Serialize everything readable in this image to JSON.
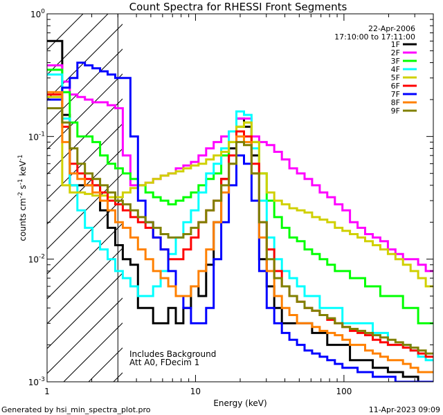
{
  "chart_data": {
    "type": "line",
    "title": "Count Spectra for RHESSI Front Segments",
    "xlabel": "Energy (keV)",
    "ylabel_parts": [
      "counts cm",
      "-2",
      " s",
      "-1",
      " keV",
      "-1"
    ],
    "xscale": "log",
    "yscale": "log",
    "xlim": [
      1,
      400
    ],
    "ylim": [
      0.001,
      1
    ],
    "x_major_ticks": [
      {
        "value": 1,
        "label": "1"
      },
      {
        "value": 10,
        "label": "10"
      },
      {
        "value": 100,
        "label": "100"
      }
    ],
    "y_major_ticks": [
      {
        "value": 1,
        "base": "10",
        "exp": "0"
      },
      {
        "value": 0.1,
        "base": "10",
        "exp": "-1"
      },
      {
        "value": 0.01,
        "base": "10",
        "exp": "-2"
      },
      {
        "value": 0.001,
        "base": "10",
        "exp": "-3"
      }
    ],
    "shaded_region_below_keV": 3,
    "header": {
      "date": "22-Apr-2006",
      "time_range": "17:10:00 to 17:11:00"
    },
    "annotations": [
      "Includes Background",
      "Att A0, FDecim 1"
    ],
    "footer_left": "Generated by hsi_min_spectra_plot.pro",
    "footer_right": "11-Apr-2023 09:09",
    "series": [
      {
        "name": "1F",
        "color": "#000000",
        "values": [
          0.6,
          0.6,
          0.15,
          0.04,
          0.04,
          0.04,
          0.04,
          0.025,
          0.018,
          0.013,
          0.01,
          0.009,
          0.004,
          0.004,
          0.003,
          0.003,
          0.004,
          0.003,
          0.004,
          0.006,
          0.005,
          0.009,
          0.02,
          0.045,
          0.08,
          0.14,
          0.12,
          0.07,
          0.01,
          0.006,
          0.004,
          0.003,
          0.003,
          0.003,
          0.003,
          0.0025,
          0.0025,
          0.002,
          0.002,
          0.002,
          0.0015,
          0.0015,
          0.0015,
          0.0013,
          0.0013,
          0.0012,
          0.0012,
          0.0011,
          0.0011,
          0.001,
          0.001
        ]
      },
      {
        "name": "2F",
        "color": "#ff00ff",
        "values": [
          0.38,
          0.38,
          0.28,
          0.22,
          0.21,
          0.2,
          0.19,
          0.19,
          0.18,
          0.17,
          0.07,
          0.04,
          0.04,
          0.042,
          0.045,
          0.048,
          0.05,
          0.055,
          0.058,
          0.062,
          0.07,
          0.08,
          0.09,
          0.1,
          0.11,
          0.14,
          0.14,
          0.1,
          0.09,
          0.085,
          0.075,
          0.065,
          0.055,
          0.05,
          0.045,
          0.04,
          0.035,
          0.032,
          0.028,
          0.025,
          0.02,
          0.018,
          0.016,
          0.015,
          0.014,
          0.012,
          0.011,
          0.01,
          0.01,
          0.009,
          0.008
        ]
      },
      {
        "name": "3F",
        "color": "#00ff00",
        "values": [
          0.35,
          0.35,
          0.23,
          0.13,
          0.1,
          0.1,
          0.09,
          0.07,
          0.06,
          0.055,
          0.05,
          0.045,
          0.04,
          0.035,
          0.032,
          0.03,
          0.028,
          0.03,
          0.032,
          0.035,
          0.04,
          0.045,
          0.05,
          0.07,
          0.09,
          0.12,
          0.13,
          0.09,
          0.05,
          0.03,
          0.022,
          0.018,
          0.015,
          0.014,
          0.012,
          0.011,
          0.01,
          0.009,
          0.008,
          0.008,
          0.007,
          0.007,
          0.006,
          0.006,
          0.005,
          0.005,
          0.005,
          0.004,
          0.004,
          0.003,
          0.003
        ]
      },
      {
        "name": "4F",
        "color": "#00ffff",
        "values": [
          0.32,
          0.32,
          0.14,
          0.04,
          0.025,
          0.018,
          0.014,
          0.012,
          0.01,
          0.008,
          0.007,
          0.006,
          0.005,
          0.005,
          0.006,
          0.008,
          0.011,
          0.015,
          0.02,
          0.025,
          0.035,
          0.05,
          0.06,
          0.08,
          0.11,
          0.16,
          0.15,
          0.08,
          0.03,
          0.015,
          0.01,
          0.008,
          0.007,
          0.006,
          0.005,
          0.005,
          0.004,
          0.004,
          0.004,
          0.003,
          0.003,
          0.003,
          0.003,
          0.0025,
          0.0025,
          0.002,
          0.002,
          0.002,
          0.0018,
          0.0016,
          0.0015
        ]
      },
      {
        "name": "5F",
        "color": "#d0d000",
        "values": [
          0.21,
          0.21,
          0.04,
          0.035,
          0.035,
          0.034,
          0.033,
          0.033,
          0.032,
          0.032,
          0.035,
          0.038,
          0.04,
          0.042,
          0.045,
          0.048,
          0.05,
          0.052,
          0.055,
          0.058,
          0.06,
          0.065,
          0.07,
          0.075,
          0.09,
          0.12,
          0.13,
          0.09,
          0.05,
          0.035,
          0.03,
          0.028,
          0.026,
          0.025,
          0.024,
          0.022,
          0.021,
          0.02,
          0.018,
          0.017,
          0.016,
          0.015,
          0.014,
          0.013,
          0.012,
          0.011,
          0.01,
          0.009,
          0.008,
          0.007,
          0.006
        ]
      },
      {
        "name": "6F",
        "color": "#ff0000",
        "values": [
          0.22,
          0.22,
          0.12,
          0.06,
          0.05,
          0.045,
          0.04,
          0.035,
          0.03,
          0.028,
          0.025,
          0.022,
          0.02,
          0.018,
          0.015,
          0.012,
          0.01,
          0.01,
          0.012,
          0.015,
          0.02,
          0.025,
          0.03,
          0.045,
          0.07,
          0.11,
          0.1,
          0.06,
          0.02,
          0.012,
          0.008,
          0.006,
          0.005,
          0.0045,
          0.004,
          0.0038,
          0.0035,
          0.0032,
          0.003,
          0.0028,
          0.0026,
          0.0025,
          0.0024,
          0.0022,
          0.0021,
          0.002,
          0.002,
          0.0019,
          0.0018,
          0.0017,
          0.0016
        ]
      },
      {
        "name": "7F",
        "color": "#0000ff",
        "values": [
          0.2,
          0.2,
          0.25,
          0.3,
          0.4,
          0.38,
          0.36,
          0.34,
          0.32,
          0.3,
          0.3,
          0.1,
          0.03,
          0.02,
          0.015,
          0.012,
          0.008,
          0.005,
          0.004,
          0.003,
          0.003,
          0.004,
          0.01,
          0.02,
          0.04,
          0.07,
          0.06,
          0.03,
          0.008,
          0.004,
          0.003,
          0.0025,
          0.0022,
          0.002,
          0.0018,
          0.0017,
          0.0016,
          0.0015,
          0.0014,
          0.0013,
          0.0013,
          0.0012,
          0.0012,
          0.0011,
          0.0011,
          0.0011,
          0.001,
          0.001,
          0.001,
          0.001,
          0.001
        ]
      },
      {
        "name": "8F",
        "color": "#ff8000",
        "values": [
          0.23,
          0.23,
          0.09,
          0.05,
          0.045,
          0.04,
          0.035,
          0.03,
          0.025,
          0.02,
          0.018,
          0.015,
          0.012,
          0.01,
          0.008,
          0.007,
          0.006,
          0.005,
          0.005,
          0.006,
          0.008,
          0.012,
          0.02,
          0.035,
          0.06,
          0.1,
          0.09,
          0.05,
          0.015,
          0.008,
          0.005,
          0.004,
          0.0035,
          0.003,
          0.003,
          0.0028,
          0.0026,
          0.0025,
          0.0024,
          0.0022,
          0.002,
          0.002,
          0.0018,
          0.0017,
          0.0016,
          0.0015,
          0.0015,
          0.0014,
          0.0013,
          0.0012,
          0.0012
        ]
      },
      {
        "name": "9F",
        "color": "#808000",
        "values": [
          0.17,
          0.17,
          0.13,
          0.08,
          0.06,
          0.05,
          0.045,
          0.04,
          0.035,
          0.03,
          0.028,
          0.025,
          0.022,
          0.02,
          0.018,
          0.016,
          0.015,
          0.015,
          0.016,
          0.018,
          0.02,
          0.025,
          0.03,
          0.04,
          0.06,
          0.09,
          0.085,
          0.05,
          0.02,
          0.01,
          0.007,
          0.006,
          0.005,
          0.0045,
          0.004,
          0.0038,
          0.0035,
          0.0033,
          0.003,
          0.0028,
          0.0027,
          0.0026,
          0.0025,
          0.0024,
          0.0023,
          0.0022,
          0.0021,
          0.002,
          0.0019,
          0.0018,
          0.0017
        ]
      }
    ]
  }
}
